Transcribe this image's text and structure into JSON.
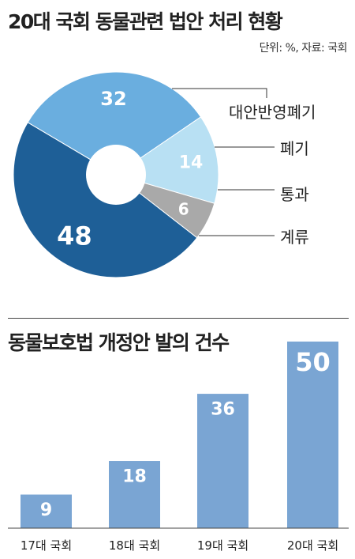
{
  "title": "20대 국회 동물관련 법안 처리 현황",
  "unit_note": "단위: %, 자료: 국회",
  "pie_colors": [
    "#6aaedf",
    "#b8e0f3",
    "#a9a9a9",
    "#1e5f97"
  ],
  "bar_color": "#7aa5d3",
  "chart_data": [
    {
      "type": "pie",
      "title": "20대 국회 동물관련 법안 처리 현황",
      "slices": [
        {
          "label": "대안반영폐기",
          "value": 32
        },
        {
          "label": "폐기",
          "value": 14
        },
        {
          "label": "통과",
          "value": 6
        },
        {
          "label": "계류",
          "value": 48
        }
      ]
    },
    {
      "type": "bar",
      "title": "동물보호법 개정안 발의 건수",
      "categories": [
        "17대 국회",
        "18대 국회",
        "19대 국회",
        "20대 국회"
      ],
      "values": [
        9,
        18,
        36,
        50
      ],
      "ylim": [
        0,
        50
      ]
    }
  ]
}
